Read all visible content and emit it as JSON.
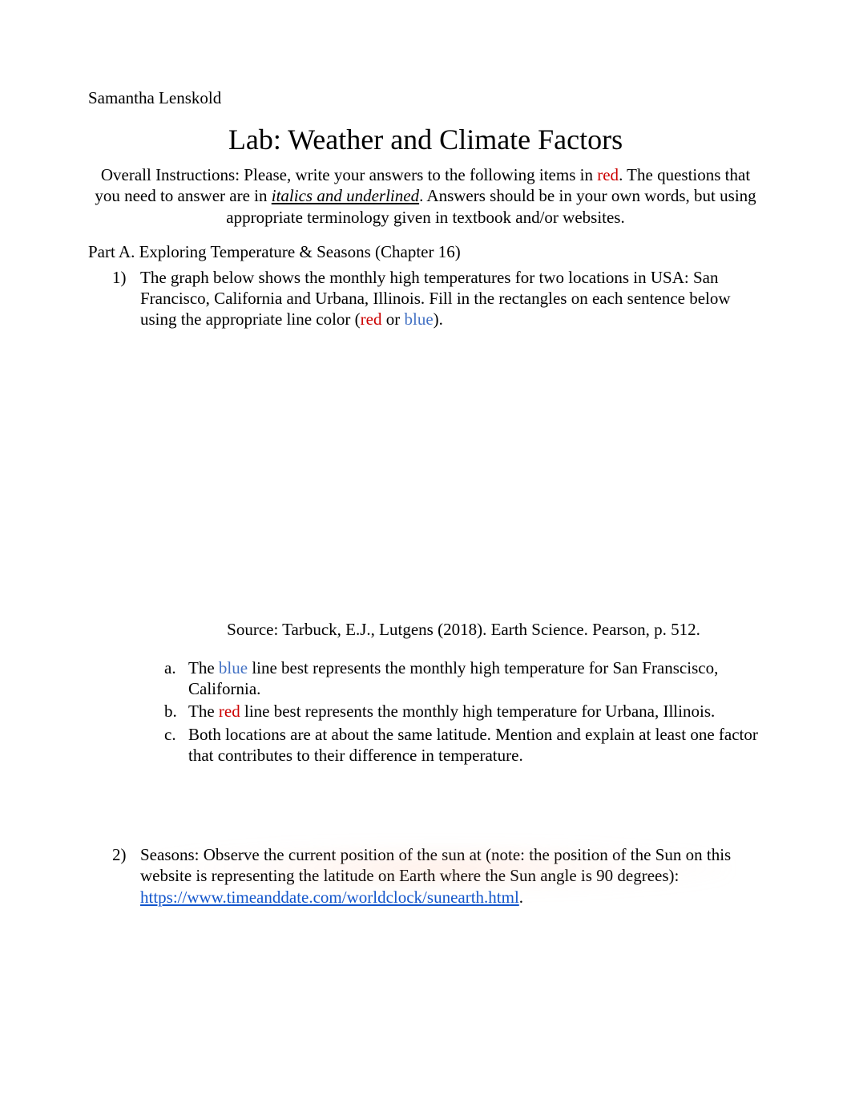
{
  "author": "Samantha Lenskold",
  "title": "Lab: Weather and Climate Factors",
  "instructions": {
    "p1": "Overall Instructions: Please, write your answers to the following items in ",
    "red_word": "red",
    "p2": ". The questions that you need to answer are in ",
    "italics_underlined": "italics and underlined",
    "p3": ". Answers should be in your own words, but using appropriate terminology given in textbook and/or websites."
  },
  "part_heading": "Part A. Exploring Temperature & Seasons (Chapter 16)",
  "q1": {
    "number": "1)",
    "body_p1": "The graph below shows the monthly high temperatures for two locations in USA: San Francisco, California and Urbana, Illinois. Fill in the rectangles ",
    "body_p2": "on each sentence below using the appropriate line color (",
    "red_word": "red",
    "or_word": " or ",
    "blue_word": "blue",
    "body_p3": ")."
  },
  "source_caption": "Source: Tarbuck, E.J., Lutgens (2018). Earth Science. Pearson, p. 512.",
  "sub_a": {
    "letter": "a.",
    "p1": "The ",
    "blue_word": "blue",
    "p2": " line best represents the monthly high temperature for San Franscisco, California."
  },
  "sub_b": {
    "letter": "b.",
    "p1": "The ",
    "red_word": "red",
    "p2": " line best represents the monthly high temperature for Urbana, Illinois."
  },
  "sub_c": {
    "letter": "c.",
    "text": "Both locations are at about the same latitude. Mention and explain at least one factor that contributes to their difference in temperature."
  },
  "q2": {
    "number": "2)",
    "p1": "Seasons: Observe the current position of the sun at (note: the position of the Sun on this website is representing the latitude on Earth where the Sun angle is 90 degrees): ",
    "link": "https://www.timeanddate.com/worldclock/sunearth.html",
    "p2": "."
  },
  "colors": {
    "text_red": "#cc0000",
    "text_blue": "#4472c4",
    "link_blue": "#1155cc",
    "body_text": "#000000",
    "background": "#ffffff"
  },
  "typography": {
    "body_fontsize": 21,
    "title_fontsize": 36,
    "font_family": "Times New Roman"
  }
}
